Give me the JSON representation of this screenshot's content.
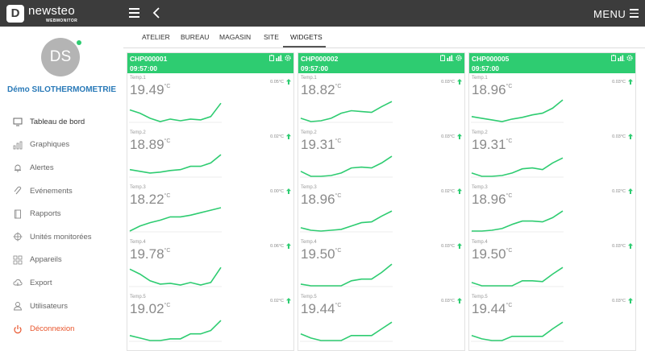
{
  "brand": {
    "badge": "D",
    "name": "newsteo",
    "sub": "WEBMONITOR"
  },
  "topbar": {
    "menu_label": "MENU"
  },
  "user": {
    "initials": "DS",
    "site": "Démo SILOTHERMOMETRIE"
  },
  "nav": [
    {
      "label": "Tableau de bord",
      "icon": "monitor-icon"
    },
    {
      "label": "Graphiques",
      "icon": "bar-chart-icon"
    },
    {
      "label": "Alertes",
      "icon": "bell-icon"
    },
    {
      "label": "Evénements",
      "icon": "paperclip-icon"
    },
    {
      "label": "Rapports",
      "icon": "document-icon"
    },
    {
      "label": "Unités monitorées",
      "icon": "crosshair-icon"
    },
    {
      "label": "Appareils",
      "icon": "grid-icon"
    },
    {
      "label": "Export",
      "icon": "cloud-upload-icon"
    },
    {
      "label": "Utilisateurs",
      "icon": "user-icon"
    },
    {
      "label": "Déconnexion",
      "icon": "power-icon"
    }
  ],
  "tabs": [
    "ATELIER",
    "BUREAU",
    "MAGASIN",
    "SITE",
    "WIDGETS"
  ],
  "colors": {
    "accent": "#2ecc71",
    "topbar": "#3c3c3c",
    "link": "#2a7ab8",
    "logout": "#e8542b"
  },
  "widgets": [
    {
      "id": "CHP000001",
      "time": "09:57:00",
      "sensors": [
        {
          "label": "Temp.1",
          "value": "19.49",
          "unit": "°C",
          "delta": "0.05°C",
          "trend": [
            7,
            5,
            2,
            0,
            1.5,
            0.5,
            1.5,
            1,
            3,
            11
          ]
        },
        {
          "label": "Temp.2",
          "value": "18.89",
          "unit": "°C",
          "delta": "0.02°C",
          "trend": [
            4,
            3,
            2,
            2.5,
            3.5,
            4,
            6,
            6,
            8,
            13
          ]
        },
        {
          "label": "Temp.3",
          "value": "18.22",
          "unit": "°C",
          "delta": "0.00°C",
          "trend": [
            0,
            3,
            5,
            6.5,
            8.5,
            8.5,
            9.5,
            11,
            12.5,
            14
          ]
        },
        {
          "label": "Temp.4",
          "value": "19.78",
          "unit": "°C",
          "delta": "0.06°C",
          "trend": [
            10,
            7,
            3,
            1,
            1.5,
            0.5,
            2,
            0.5,
            2,
            11
          ]
        },
        {
          "label": "Temp.5",
          "value": "19.02",
          "unit": "°C",
          "delta": "0.02°C",
          "trend": [
            3,
            1.5,
            0,
            0,
            1,
            1,
            4,
            4,
            6,
            12
          ]
        }
      ]
    },
    {
      "id": "CHP000002",
      "time": "09:57:00",
      "sensors": [
        {
          "label": "Temp.1",
          "value": "18.82",
          "unit": "°C",
          "delta": "0.03°C",
          "trend": [
            2,
            0,
            0.5,
            2,
            5,
            6.5,
            6,
            5.5,
            9,
            12
          ]
        },
        {
          "label": "Temp.2",
          "value": "19.31",
          "unit": "°C",
          "delta": "0.03°C",
          "trend": [
            3,
            0,
            0,
            0.5,
            2,
            5,
            5.5,
            5,
            8,
            12
          ]
        },
        {
          "label": "Temp.3",
          "value": "18.96",
          "unit": "°C",
          "delta": "0.02°C",
          "trend": [
            2,
            0.5,
            0,
            0.5,
            1,
            3,
            5,
            5.5,
            9,
            12
          ]
        },
        {
          "label": "Temp.4",
          "value": "19.50",
          "unit": "°C",
          "delta": "0.03°C",
          "trend": [
            1,
            0,
            0,
            0,
            0,
            3,
            4,
            4,
            8,
            13
          ]
        },
        {
          "label": "Temp.5",
          "value": "19.44",
          "unit": "°C",
          "delta": "0.03°C",
          "trend": [
            4,
            1.5,
            0,
            0,
            0,
            3,
            3,
            3,
            7,
            11
          ]
        }
      ]
    },
    {
      "id": "CHP000005",
      "time": "09:57:00",
      "sensors": [
        {
          "label": "Temp.1",
          "value": "18.96",
          "unit": "°C",
          "delta": "0.03°C",
          "trend": [
            3,
            2,
            1,
            0,
            1.5,
            2.5,
            4,
            5,
            8,
            13
          ]
        },
        {
          "label": "Temp.2",
          "value": "19.31",
          "unit": "°C",
          "delta": "0.03°C",
          "trend": [
            2,
            0,
            0,
            0.5,
            2,
            4.5,
            5,
            4,
            8,
            11
          ]
        },
        {
          "label": "Temp.3",
          "value": "18.96",
          "unit": "°C",
          "delta": "0.02°C",
          "trend": [
            0,
            0,
            0.5,
            1.5,
            4,
            6,
            6,
            5.5,
            8,
            12
          ]
        },
        {
          "label": "Temp.4",
          "value": "19.50",
          "unit": "°C",
          "delta": "0.03°C",
          "trend": [
            2,
            0,
            0,
            0,
            0,
            3,
            3,
            2.5,
            7,
            11
          ]
        },
        {
          "label": "Temp.5",
          "value": "19.44",
          "unit": "°C",
          "delta": "0.03°C",
          "trend": [
            3,
            1,
            0,
            0,
            2.5,
            2.5,
            2.5,
            2.5,
            7,
            11
          ]
        }
      ]
    }
  ]
}
